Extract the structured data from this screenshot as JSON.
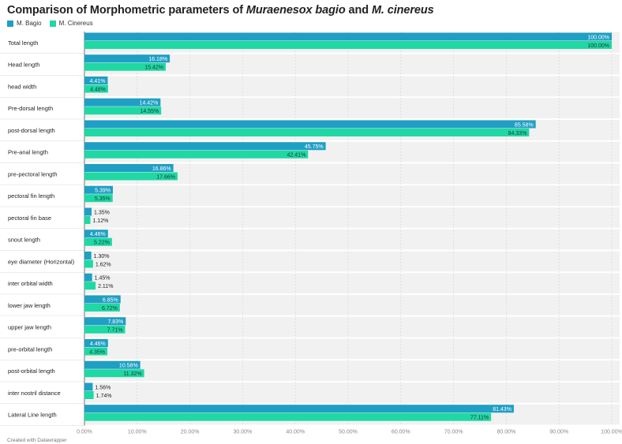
{
  "header": {
    "title_prefix": "Comparison of Morphometric parameters of ",
    "title_species1": "Muraenesox bagio",
    "title_mid": " and ",
    "title_species2": "M. cinereus"
  },
  "footer": {
    "credit": "Created with Datawrapper"
  },
  "colors": {
    "bagio": "#1f9fc4",
    "cinereus": "#1fd8a4",
    "band": "#f1f1f1"
  },
  "chart_data": {
    "type": "bar",
    "orientation": "horizontal",
    "title": "Comparison of Morphometric parameters of Muraenesox bagio and M. cinereus",
    "categories": [
      "Total length",
      "Head length",
      "head width",
      "Pre-dorsal length",
      "post-dorsal length",
      "Pre-anal length",
      "pre-pectoral length",
      "pectoral fin length",
      "pectoral fin base",
      "snout length",
      "eye diameter (Horizontal)",
      "inter orbital width",
      "lower jaw length",
      "upper jaw length",
      "pre-orbital length",
      "post-orbital length",
      "inter nostril distance",
      "Lateral Line length"
    ],
    "series": [
      {
        "name": "M. Bagio",
        "color": "#1f9fc4",
        "values": [
          100.0,
          16.18,
          4.41,
          14.42,
          85.58,
          45.75,
          16.86,
          5.39,
          1.35,
          4.46,
          1.3,
          1.45,
          6.85,
          7.83,
          4.46,
          10.58,
          1.56,
          81.43
        ],
        "labels": [
          "100.00%",
          "16.18%",
          "4.41%",
          "14.42%",
          "85.58%",
          "45.75%",
          "16.86%",
          "5.39%",
          "1.35%",
          "4.46%",
          "1.30%",
          "1.45%",
          "6.85%",
          "7.83%",
          "4.46%",
          "10.58%",
          "1.56%",
          "81.43%"
        ]
      },
      {
        "name": "M. Cinereus",
        "color": "#1fd8a4",
        "values": [
          100.0,
          15.42,
          4.48,
          14.55,
          84.33,
          42.41,
          17.66,
          5.35,
          1.12,
          5.22,
          1.62,
          2.11,
          6.72,
          7.71,
          4.35,
          11.32,
          1.74,
          77.11
        ],
        "labels": [
          "100.00%",
          "15.42%",
          "4.48%",
          "14.55%",
          "84.33%",
          "42.41%",
          "17.66%",
          "5.35%",
          "1.12%",
          "5.22%",
          "1.62%",
          "2.11%",
          "6.72%",
          "7.71%",
          "4.35%",
          "11.32%",
          "1.74%",
          "77.11%"
        ]
      }
    ],
    "xlim": [
      0,
      100
    ],
    "xticks": [
      0,
      10,
      20,
      30,
      40,
      50,
      60,
      70,
      80,
      90,
      100
    ],
    "xtick_labels": [
      "0.00%",
      "10.00%",
      "20.00%",
      "30.00%",
      "40.00%",
      "50.00%",
      "60.00%",
      "70.00%",
      "80.00%",
      "90.00%",
      "100.00%"
    ],
    "grid": true,
    "legend": "top-left"
  }
}
